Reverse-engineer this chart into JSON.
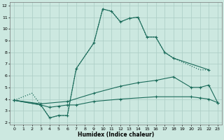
{
  "xlabel": "Humidex (Indice chaleur)",
  "bg_color": "#cce8e0",
  "grid_color": "#aaccc4",
  "line_color": "#1a6b5a",
  "xlim": [
    -0.5,
    23.5
  ],
  "ylim": [
    1.8,
    12.3
  ],
  "xticks": [
    0,
    1,
    2,
    3,
    4,
    5,
    6,
    7,
    8,
    9,
    10,
    11,
    12,
    13,
    14,
    15,
    16,
    17,
    18,
    19,
    20,
    21,
    22,
    23
  ],
  "yticks": [
    2,
    3,
    4,
    5,
    6,
    7,
    8,
    9,
    10,
    11,
    12
  ],
  "series": [
    {
      "x": [
        0,
        2,
        3,
        4,
        5,
        6,
        7,
        9,
        10,
        11,
        12,
        13,
        14,
        15,
        16,
        17,
        18,
        21,
        22
      ],
      "y": [
        3.9,
        4.5,
        3.5,
        2.4,
        2.6,
        2.6,
        6.6,
        8.8,
        11.7,
        11.5,
        10.6,
        10.9,
        11.0,
        9.3,
        9.3,
        8.0,
        7.5,
        6.5,
        6.5
      ],
      "linestyle": "dotted",
      "marker": false
    },
    {
      "x": [
        0,
        3,
        4,
        5,
        6,
        7,
        9,
        10,
        11,
        12,
        13,
        14,
        15,
        16,
        17,
        18,
        22
      ],
      "y": [
        3.9,
        3.5,
        2.4,
        2.6,
        2.6,
        6.6,
        8.8,
        11.7,
        11.5,
        10.6,
        10.9,
        11.0,
        9.3,
        9.3,
        8.0,
        7.5,
        6.5
      ],
      "linestyle": "solid",
      "marker": true
    },
    {
      "x": [
        0,
        3,
        6,
        9,
        12,
        14,
        16,
        18,
        20,
        21,
        22,
        23
      ],
      "y": [
        3.9,
        3.6,
        3.8,
        4.5,
        5.1,
        5.4,
        5.6,
        5.9,
        5.0,
        5.0,
        5.2,
        3.7
      ],
      "linestyle": "solid",
      "marker": true
    },
    {
      "x": [
        0,
        3,
        4,
        5,
        6,
        7,
        9,
        12,
        16,
        20,
        21,
        22,
        23
      ],
      "y": [
        3.9,
        3.5,
        3.3,
        3.4,
        3.5,
        3.5,
        3.8,
        4.0,
        4.2,
        4.2,
        4.1,
        4.0,
        3.7
      ],
      "linestyle": "solid",
      "marker": true
    }
  ]
}
